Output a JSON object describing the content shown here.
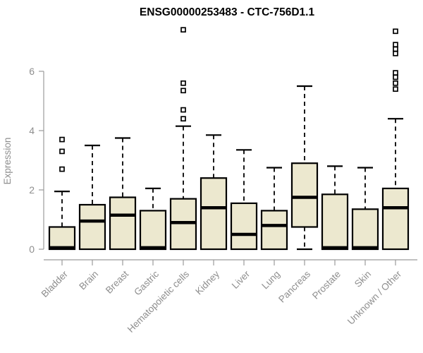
{
  "title": "ENSG00000253483 - CTC-756D1.1",
  "colors": {
    "box_fill": "#ece8cf",
    "box_stroke": "#000000",
    "median": "#000000",
    "whisker": "#000000",
    "outlier_stroke": "#000000",
    "outlier_fill": "#ffffff",
    "axis": "#9b9b9b",
    "text_gray": "#8e8e8e",
    "title_color": "#000000",
    "background": "#ffffff"
  },
  "chart_data": {
    "type": "boxplot",
    "title": "ENSG00000253483 - CTC-756D1.1",
    "xlabel": "",
    "ylabel": "Expression",
    "yticks": [
      0,
      2,
      4,
      6
    ],
    "ylim": [
      0,
      7.6
    ],
    "grid": false,
    "legend": false,
    "categories": [
      "Bladder",
      "Brain",
      "Breast",
      "Gastric",
      "Hematopoietic cells",
      "Kidney",
      "Liver",
      "Lung",
      "Pancreas",
      "Prostate",
      "Skin",
      "Unknown / Other"
    ],
    "boxes": [
      {
        "label": "Bladder",
        "whisker_low": 0,
        "q1": 0,
        "median": 0.05,
        "q3": 0.75,
        "whisker_high": 1.95,
        "outliers": [
          2.7,
          3.3,
          3.7
        ]
      },
      {
        "label": "Brain",
        "whisker_low": 0,
        "q1": 0,
        "median": 0.95,
        "q3": 1.5,
        "whisker_high": 3.5,
        "outliers": []
      },
      {
        "label": "Breast",
        "whisker_low": 0,
        "q1": 0,
        "median": 1.15,
        "q3": 1.75,
        "whisker_high": 3.75,
        "outliers": []
      },
      {
        "label": "Gastric",
        "whisker_low": 0,
        "q1": 0,
        "median": 0.05,
        "q3": 1.3,
        "whisker_high": 2.05,
        "outliers": []
      },
      {
        "label": "Hematopoietic cells",
        "whisker_low": 0,
        "q1": 0,
        "median": 0.9,
        "q3": 1.7,
        "whisker_high": 4.15,
        "outliers": [
          4.4,
          4.7,
          5.35,
          5.6,
          7.4
        ]
      },
      {
        "label": "Kidney",
        "whisker_low": 0,
        "q1": 0,
        "median": 1.4,
        "q3": 2.4,
        "whisker_high": 3.85,
        "outliers": []
      },
      {
        "label": "Liver",
        "whisker_low": 0,
        "q1": 0,
        "median": 0.5,
        "q3": 1.55,
        "whisker_high": 3.35,
        "outliers": []
      },
      {
        "label": "Lung",
        "whisker_low": 0,
        "q1": 0,
        "median": 0.8,
        "q3": 1.3,
        "whisker_high": 2.75,
        "outliers": []
      },
      {
        "label": "Pancreas",
        "whisker_low": 0,
        "q1": 0.75,
        "median": 1.75,
        "q3": 2.9,
        "whisker_high": 5.5,
        "outliers": []
      },
      {
        "label": "Prostate",
        "whisker_low": 0,
        "q1": 0,
        "median": 0.05,
        "q3": 1.85,
        "whisker_high": 2.8,
        "outliers": []
      },
      {
        "label": "Skin",
        "whisker_low": 0,
        "q1": 0,
        "median": 0.05,
        "q3": 1.35,
        "whisker_high": 2.75,
        "outliers": []
      },
      {
        "label": "Unknown / Other",
        "whisker_low": 0,
        "q1": 0,
        "median": 1.4,
        "q3": 2.05,
        "whisker_high": 4.4,
        "outliers": [
          5.4,
          5.6,
          5.8,
          5.95,
          6.6,
          6.75,
          6.9,
          7.35
        ]
      }
    ]
  }
}
